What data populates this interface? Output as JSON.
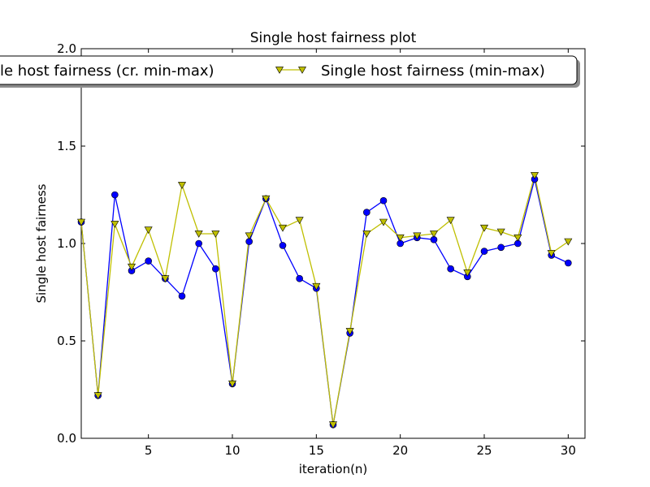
{
  "chart_data": {
    "type": "line",
    "title": "Single host fairness plot",
    "xlabel": "iteration(n)",
    "ylabel": "Single host fairness",
    "xlim": [
      1,
      31
    ],
    "ylim": [
      0.0,
      2.0
    ],
    "x_ticks": [
      5,
      10,
      15,
      20,
      25,
      30
    ],
    "y_ticks": [
      0.0,
      0.5,
      1.0,
      1.5,
      2.0
    ],
    "y_tick_labels": [
      "0.0",
      "0.5",
      "1.0",
      "1.5",
      "2.0"
    ],
    "grid": false,
    "legend_position": "top-center",
    "x": [
      1,
      2,
      3,
      4,
      5,
      6,
      7,
      8,
      9,
      10,
      11,
      12,
      13,
      14,
      15,
      16,
      17,
      18,
      19,
      20,
      21,
      22,
      23,
      24,
      25,
      26,
      27,
      28,
      29,
      30
    ],
    "series": [
      {
        "name": "Single host fairness (cr. min-max)",
        "legend_visible_text": "le host fairness (cr. min-max)",
        "color": "#0000ff",
        "marker": "circle",
        "values": [
          1.11,
          0.22,
          1.25,
          0.86,
          0.91,
          0.82,
          0.73,
          1.0,
          0.87,
          0.28,
          1.01,
          1.23,
          0.99,
          0.82,
          0.77,
          0.07,
          0.54,
          1.16,
          1.22,
          1.0,
          1.03,
          1.02,
          0.87,
          0.83,
          0.96,
          0.98,
          1.0,
          1.33,
          0.94,
          0.9
        ]
      },
      {
        "name": "Single host fairness (min-max)",
        "legend_visible_text": "Single host fairness (min-max)",
        "color": "#bfbf00",
        "marker": "triangle-down",
        "values": [
          1.11,
          0.22,
          1.1,
          0.88,
          1.07,
          0.82,
          1.3,
          1.05,
          1.05,
          0.28,
          1.04,
          1.23,
          1.08,
          1.12,
          0.78,
          0.07,
          0.55,
          1.05,
          1.11,
          1.03,
          1.04,
          1.05,
          1.12,
          0.85,
          1.08,
          1.06,
          1.03,
          1.35,
          0.95,
          1.01
        ]
      }
    ]
  }
}
